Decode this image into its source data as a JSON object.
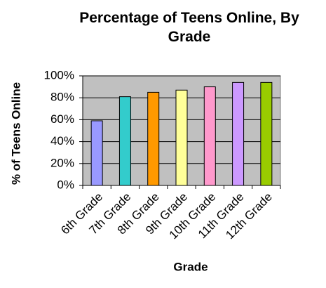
{
  "chart_data": {
    "type": "bar",
    "title": "Percentage of Teens Online, By Grade",
    "x_label": "Grade",
    "y_label": "% of Teens Online",
    "categories": [
      "6th Grade",
      "7th Grade",
      "8th Grade",
      "9th Grade",
      "10th Grade",
      "11th Grade",
      "12th Grade"
    ],
    "values": [
      59,
      81,
      85,
      87,
      90,
      94,
      94
    ],
    "colors": [
      "#9999ff",
      "#33cccc",
      "#ff9900",
      "#ffff99",
      "#ff99cc",
      "#cc99ff",
      "#99cc00"
    ],
    "ylim": [
      0,
      100
    ],
    "yticks": [
      {
        "value": 0,
        "label": "0%"
      },
      {
        "value": 20,
        "label": "20%"
      },
      {
        "value": 40,
        "label": "40%"
      },
      {
        "value": 60,
        "label": "60%"
      },
      {
        "value": 80,
        "label": "80%"
      },
      {
        "value": 100,
        "label": "100%"
      }
    ],
    "grid": true,
    "plot_background": "#c0c0c0"
  }
}
